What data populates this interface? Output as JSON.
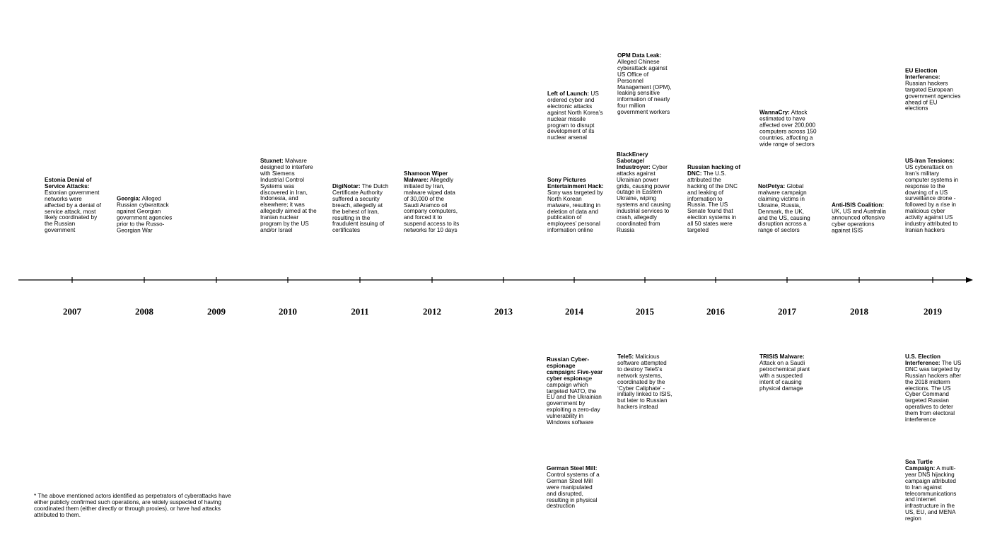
{
  "years": [
    "2007",
    "2008",
    "2009",
    "2010",
    "2011",
    "2012",
    "2013",
    "2014",
    "2015",
    "2016",
    "2017",
    "2018",
    "2019"
  ],
  "events": {
    "estonia": {
      "title": "Estonia Denial of Service Attacks:",
      "text": " Estonian government networks were affected by a denial of service attack, most likely coordinated by the Russian government"
    },
    "georgia": {
      "title": "Georgia:",
      "text": " Alleged Russian cyberattack against Georgian government agencies prior to the Russo-Georgian War"
    },
    "stuxnet": {
      "title": "Stuxnet:",
      "text": " Malware designed to interfere with Siemens Industrial Control Systems was discovered in Iran, Indonesia, and elsewhere; it was allegedly aimed at the Iranian nuclear program by the US and/or Israel"
    },
    "diginotar": {
      "title": "DigiNotar:",
      "text": " The Dutch Certificate Authority suffered a security breach, allegedly at the behest of Iran, resulting in the fraudulent issuing of certificates"
    },
    "shamoon": {
      "title": "Shamoon Wiper Malware:",
      "text": " Allegedly initiated by Iran, malware wiped data of 30,000 of the Saudi Aramco oil company computers, and forced it to suspend access to its networks for 10 days"
    },
    "left_of_launch": {
      "title": "Left of Launch:",
      "text": " US ordered cyber and electronic attacks against North Korea’s nuclear missile program to disrupt development of its nuclear arsenal"
    },
    "sony": {
      "title": "Sony Pictures Entertainment Hack:",
      "text": " Sony was targeted by North Korean malware, resulting in deletion of data and publication of employees’ personal information online"
    },
    "opm": {
      "title": "OPM Data Leak:",
      "text": " Alleged Chinese cyberattack against US Office of Personnel Management (OPM), leaking sensitive information of nearly four million government workers"
    },
    "blackenergy": {
      "title": "BlackEnery Sabotage/ Industroyer:",
      "text": " Cyber attacks against Ukrainian power grids, causing power outage in Eastern Ukraine, wiping systems and causing industrial services to crash, allegedly coordinated from Russia"
    },
    "dnc": {
      "title": "Russian hacking of DNC:",
      "text": " The U.S. attributed the hacking of the DNC and leaking of information to Russia. The US Senate found that election systems in all 50 states were targeted"
    },
    "wannacry": {
      "title": "WannaCry:",
      "text": " Attack estimated to have affected over 200,000 computers across 150 countries, affecting a wide range of sectors"
    },
    "notpetya": {
      "title": "NotPetya:",
      "text": " Global malware campaign claiming victims in Ukraine, Russia, Denmark, the UK, and the US, causing disruption across a range of sectors"
    },
    "anti_isis": {
      "title": "Anti-ISIS Coalition:",
      "text": " UK, US and Australia announced offensive cyber operations against ISIS"
    },
    "eu_election": {
      "title": "EU Election Interference:",
      "text": " Russian hackers targeted European government agencies ahead of EU elections"
    },
    "us_iran": {
      "title": "US-Iran Tensions:",
      "text": " US cyberattack on Iran’s military computer systems in response to the downing of a US surveillance drone - followed by a rise in malicious cyber activity against US industry attributed to Iranian hackers"
    },
    "russian_espionage": {
      "title": "Russian Cyber-espionage campaign: Five-year cyber espion",
      "text": "age campaign which targeted NATO, the EU and the Ukrainian government by exploiting a zero-day vulnerability in Windows software"
    },
    "german_steel": {
      "title": "German Steel Mill:",
      "text": " Control systems of a German Steel Mill were manipulated and disrupted, resulting in physical destruction"
    },
    "tele5": {
      "title": "Tele5:",
      "text": " Malicious software attempted to destroy Tele5’s network systems, coordinated by the ‘Cyber Caliphate’ - initially linked to ISIS, but later to Russian hackers instead"
    },
    "trisis": {
      "title": "TRISIS Malware:",
      "text": " Attack on a Saudi petrochemical plant with a suspected intent of causing physical damage"
    },
    "us_election": {
      "title": "U.S. Election Interference:",
      "text": " The US DNC was targeted by Russian hackers after the 2018 midterm elections. The US Cyber Command targeted Russian operatives to deter them from electoral interference"
    },
    "sea_turtle": {
      "title": "Sea Turtle Campaign:",
      "text": " A multi-year DNS hijacking campaign attributed to Iran against telecommunications and internet infrastructure in the US, EU, and MENA region"
    }
  },
  "footnote": "* The above mentioned actors identified as perpetrators of cyberattacks have either publicly confirmed such operations, are widely suspected of having coordinated them (either directly or through proxies), or have had attacks attributed to them.",
  "colors": {
    "line": "#000000",
    "text": "#000000",
    "background": "#ffffff"
  }
}
